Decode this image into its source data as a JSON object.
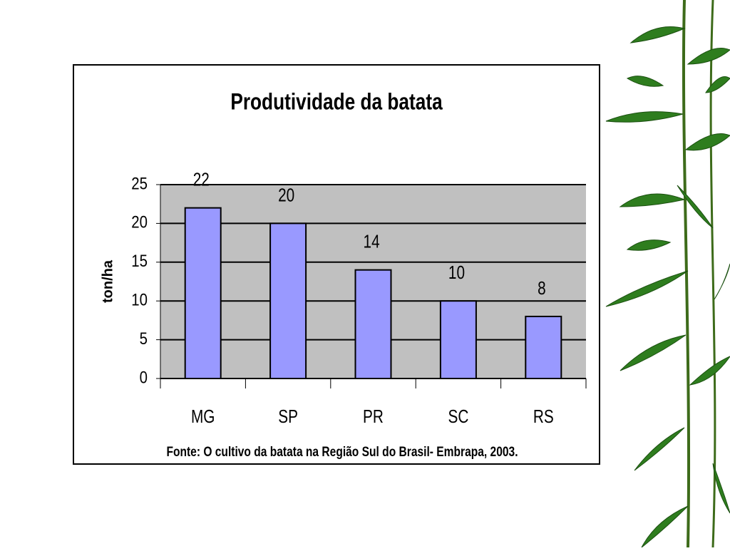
{
  "chart_data": {
    "type": "bar",
    "title": "Produtividade da batata",
    "y_label": "ton/ha",
    "categories": [
      "MG",
      "SP",
      "PR",
      "SC",
      "RS"
    ],
    "values": [
      22,
      20,
      14,
      10,
      8
    ],
    "color": "#9999ff",
    "ylim": [
      0,
      25
    ],
    "yticks": [
      0,
      5,
      10,
      15,
      20,
      25
    ],
    "grid": true,
    "annotation": "Fonte: O cultivo da batata na Região Sul do Brasil- Embrapa, 2003."
  }
}
